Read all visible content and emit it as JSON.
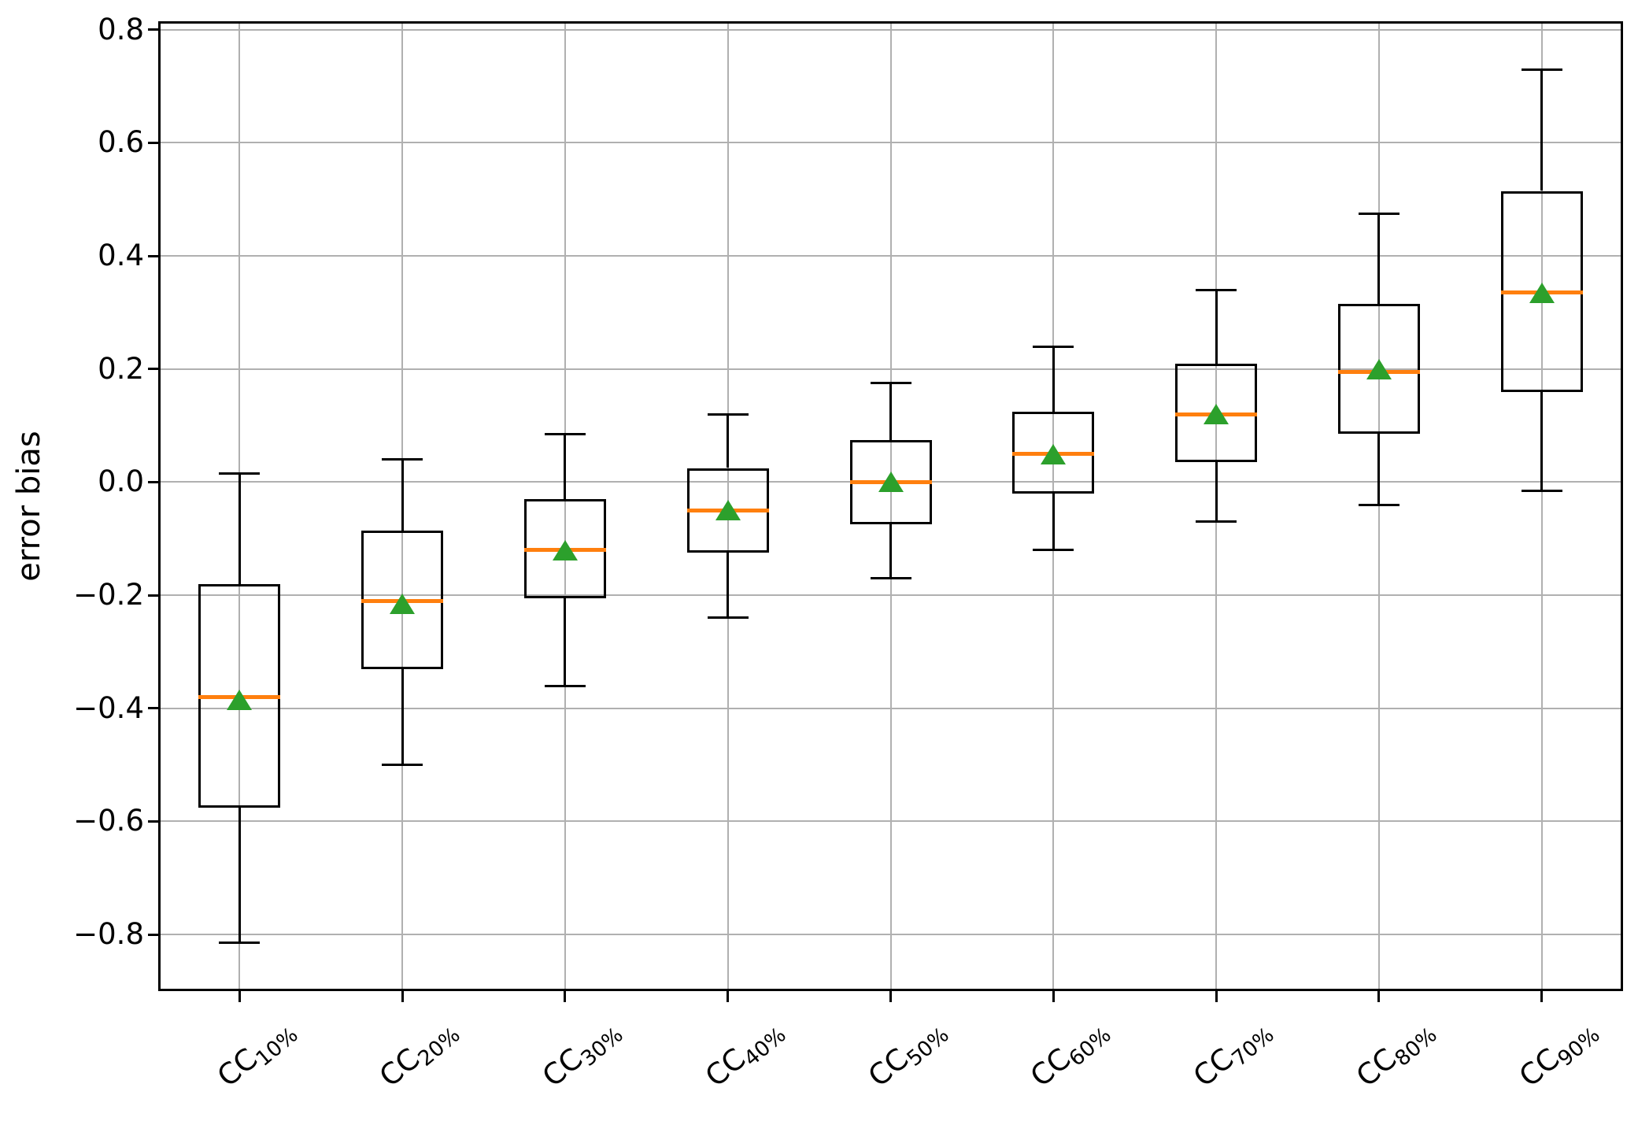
{
  "chart_data": {
    "type": "boxplot",
    "title": "",
    "xlabel": "",
    "ylabel": "error bias",
    "grid": true,
    "legend": "none",
    "ylim": [
      -0.9,
      0.815
    ],
    "yticks": [
      {
        "value": 0.8,
        "label": "0.8"
      },
      {
        "value": 0.6,
        "label": "0.6"
      },
      {
        "value": 0.4,
        "label": "0.4"
      },
      {
        "value": 0.2,
        "label": "0.2"
      },
      {
        "value": 0.0,
        "label": "0.0"
      },
      {
        "value": -0.2,
        "label": "−0.2"
      },
      {
        "value": -0.4,
        "label": "−0.4"
      },
      {
        "value": -0.6,
        "label": "−0.6"
      },
      {
        "value": -0.8,
        "label": "−0.8"
      }
    ],
    "colors": {
      "box_line": "#000000",
      "median": "#ff7f0e",
      "mean_marker": "#2ca02c",
      "gridline": "#b0b0b0",
      "background": "#ffffff"
    },
    "category_prefix": "CC",
    "category_subscripts": [
      "10%",
      "20%",
      "30%",
      "40%",
      "50%",
      "60%",
      "70%",
      "80%",
      "90%"
    ],
    "categories": [
      "CC10%",
      "CC20%",
      "CC30%",
      "CC40%",
      "CC50%",
      "CC60%",
      "CC70%",
      "CC80%",
      "CC90%"
    ],
    "series": [
      {
        "category": "CC10%",
        "whisker_low": -0.815,
        "q1": -0.575,
        "median": -0.38,
        "mean": -0.385,
        "q3": -0.18,
        "whisker_high": 0.015
      },
      {
        "category": "CC20%",
        "whisker_low": -0.5,
        "q1": -0.33,
        "median": -0.21,
        "mean": -0.215,
        "q3": -0.085,
        "whisker_high": 0.04
      },
      {
        "category": "CC30%",
        "whisker_low": -0.36,
        "q1": -0.205,
        "median": -0.12,
        "mean": -0.12,
        "q3": -0.03,
        "whisker_high": 0.085
      },
      {
        "category": "CC40%",
        "whisker_low": -0.24,
        "q1": -0.125,
        "median": -0.05,
        "mean": -0.05,
        "q3": 0.025,
        "whisker_high": 0.12
      },
      {
        "category": "CC50%",
        "whisker_low": -0.17,
        "q1": -0.075,
        "median": 0.0,
        "mean": 0.0,
        "q3": 0.075,
        "whisker_high": 0.175
      },
      {
        "category": "CC60%",
        "whisker_low": -0.12,
        "q1": -0.02,
        "median": 0.05,
        "mean": 0.05,
        "q3": 0.125,
        "whisker_high": 0.24
      },
      {
        "category": "CC70%",
        "whisker_low": -0.07,
        "q1": 0.035,
        "median": 0.12,
        "mean": 0.12,
        "q3": 0.21,
        "whisker_high": 0.34
      },
      {
        "category": "CC80%",
        "whisker_low": -0.04,
        "q1": 0.085,
        "median": 0.195,
        "mean": 0.2,
        "q3": 0.315,
        "whisker_high": 0.475
      },
      {
        "category": "CC90%",
        "whisker_low": -0.015,
        "q1": 0.16,
        "median": 0.335,
        "mean": 0.335,
        "q3": 0.515,
        "whisker_high": 0.73
      }
    ]
  }
}
